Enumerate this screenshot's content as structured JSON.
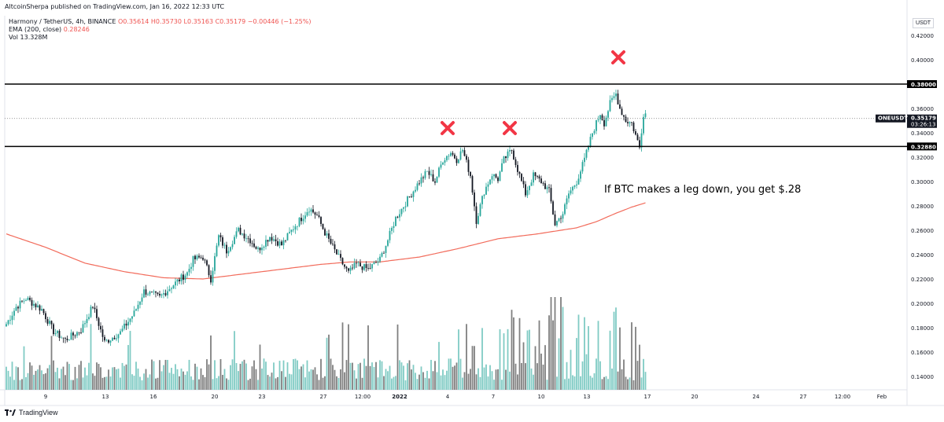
{
  "header": {
    "published": "AltcoinSherpa published on TradingView.com, Jan 16, 2022 12:33 UTC"
  },
  "legend": {
    "symbol": "Harmony / TetherUS, 4h, BINANCE",
    "ohlc": "O0.35614  H0.35730  L0.35163  C0.35179  −0.00446 (−1.25%)",
    "ema_label": "EMA (200, close)",
    "ema_value": "0.28246",
    "vol_label": "Vol",
    "vol_value": "13.328M"
  },
  "currency_button": "USDT",
  "footer": {
    "brand": "TradingView"
  },
  "colors": {
    "up": "#26a69a",
    "down": "#131722",
    "ema": "#f26b5b",
    "vol_up": "#80cbc4",
    "vol_down": "#808080",
    "cross": "#f23645"
  },
  "chart_data": {
    "type": "candlestick",
    "y_axis": {
      "range": [
        0.13,
        0.43
      ],
      "ticks": [
        "0.42000",
        "0.40000",
        "0.38000",
        "0.36000",
        "0.34000",
        "0.32000",
        "0.30000",
        "0.28000",
        "0.26000",
        "0.24000",
        "0.22000",
        "0.20000",
        "0.18000",
        "0.16000",
        "0.14000"
      ]
    },
    "x_axis": {
      "ticks": [
        "9",
        "13",
        "16",
        "20",
        "23",
        "27",
        "12:00",
        "2022",
        "4",
        "7",
        "10",
        "13",
        "17",
        "20",
        "24",
        "27",
        "12:00",
        "Feb"
      ]
    },
    "price_labels": [
      {
        "text": "0.38000",
        "value": 0.38
      },
      {
        "text": "0.35179",
        "value": 0.35179,
        "tag": "ONEUSDT",
        "countdown": "03:26:13"
      },
      {
        "text": "0.32880",
        "value": 0.3288
      }
    ],
    "horizontal_lines": [
      0.38,
      0.3288
    ],
    "annotation": "If BTC makes a leg down, you get $.28",
    "markers": [
      "x",
      "x",
      "x"
    ],
    "anchors": [
      [
        0,
        0.183
      ],
      [
        5,
        0.197
      ],
      [
        10,
        0.204
      ],
      [
        18,
        0.195
      ],
      [
        24,
        0.177
      ],
      [
        30,
        0.17
      ],
      [
        38,
        0.178
      ],
      [
        44,
        0.198
      ],
      [
        50,
        0.168
      ],
      [
        58,
        0.176
      ],
      [
        65,
        0.192
      ],
      [
        70,
        0.21
      ],
      [
        78,
        0.205
      ],
      [
        84,
        0.214
      ],
      [
        92,
        0.225
      ],
      [
        95,
        0.236
      ],
      [
        100,
        0.238
      ],
      [
        104,
        0.22
      ],
      [
        108,
        0.255
      ],
      [
        112,
        0.243
      ],
      [
        118,
        0.26
      ],
      [
        124,
        0.252
      ],
      [
        128,
        0.244
      ],
      [
        134,
        0.255
      ],
      [
        140,
        0.248
      ],
      [
        146,
        0.262
      ],
      [
        154,
        0.278
      ],
      [
        158,
        0.272
      ],
      [
        162,
        0.258
      ],
      [
        166,
        0.246
      ],
      [
        170,
        0.235
      ],
      [
        174,
        0.225
      ],
      [
        178,
        0.232
      ],
      [
        184,
        0.228
      ],
      [
        190,
        0.236
      ],
      [
        194,
        0.252
      ],
      [
        198,
        0.27
      ],
      [
        204,
        0.285
      ],
      [
        210,
        0.3
      ],
      [
        214,
        0.308
      ],
      [
        218,
        0.3
      ],
      [
        222,
        0.318
      ],
      [
        226,
        0.324
      ],
      [
        229,
        0.318
      ],
      [
        232,
        0.326
      ],
      [
        236,
        0.305
      ],
      [
        239,
        0.268
      ],
      [
        243,
        0.292
      ],
      [
        247,
        0.306
      ],
      [
        250,
        0.302
      ],
      [
        253,
        0.318
      ],
      [
        257,
        0.326
      ],
      [
        260,
        0.31
      ],
      [
        264,
        0.29
      ],
      [
        268,
        0.305
      ],
      [
        272,
        0.3
      ],
      [
        276,
        0.292
      ],
      [
        279,
        0.265
      ],
      [
        283,
        0.274
      ],
      [
        286,
        0.29
      ],
      [
        290,
        0.3
      ],
      [
        294,
        0.318
      ],
      [
        298,
        0.34
      ],
      [
        302,
        0.356
      ],
      [
        304,
        0.348
      ],
      [
        307,
        0.364
      ],
      [
        310,
        0.372
      ],
      [
        312,
        0.36
      ],
      [
        315,
        0.35
      ],
      [
        318,
        0.348
      ],
      [
        320,
        0.338
      ],
      [
        322,
        0.328
      ],
      [
        324,
        0.356
      ]
    ],
    "ema_anchors": [
      [
        0,
        0.257
      ],
      [
        20,
        0.246
      ],
      [
        40,
        0.233
      ],
      [
        60,
        0.226
      ],
      [
        80,
        0.221
      ],
      [
        100,
        0.22
      ],
      [
        120,
        0.224
      ],
      [
        140,
        0.228
      ],
      [
        160,
        0.232
      ],
      [
        175,
        0.234
      ],
      [
        190,
        0.234
      ],
      [
        210,
        0.238
      ],
      [
        230,
        0.245
      ],
      [
        250,
        0.253
      ],
      [
        270,
        0.257
      ],
      [
        290,
        0.262
      ],
      [
        300,
        0.267
      ],
      [
        310,
        0.274
      ],
      [
        318,
        0.279
      ],
      [
        326,
        0.283
      ]
    ]
  }
}
